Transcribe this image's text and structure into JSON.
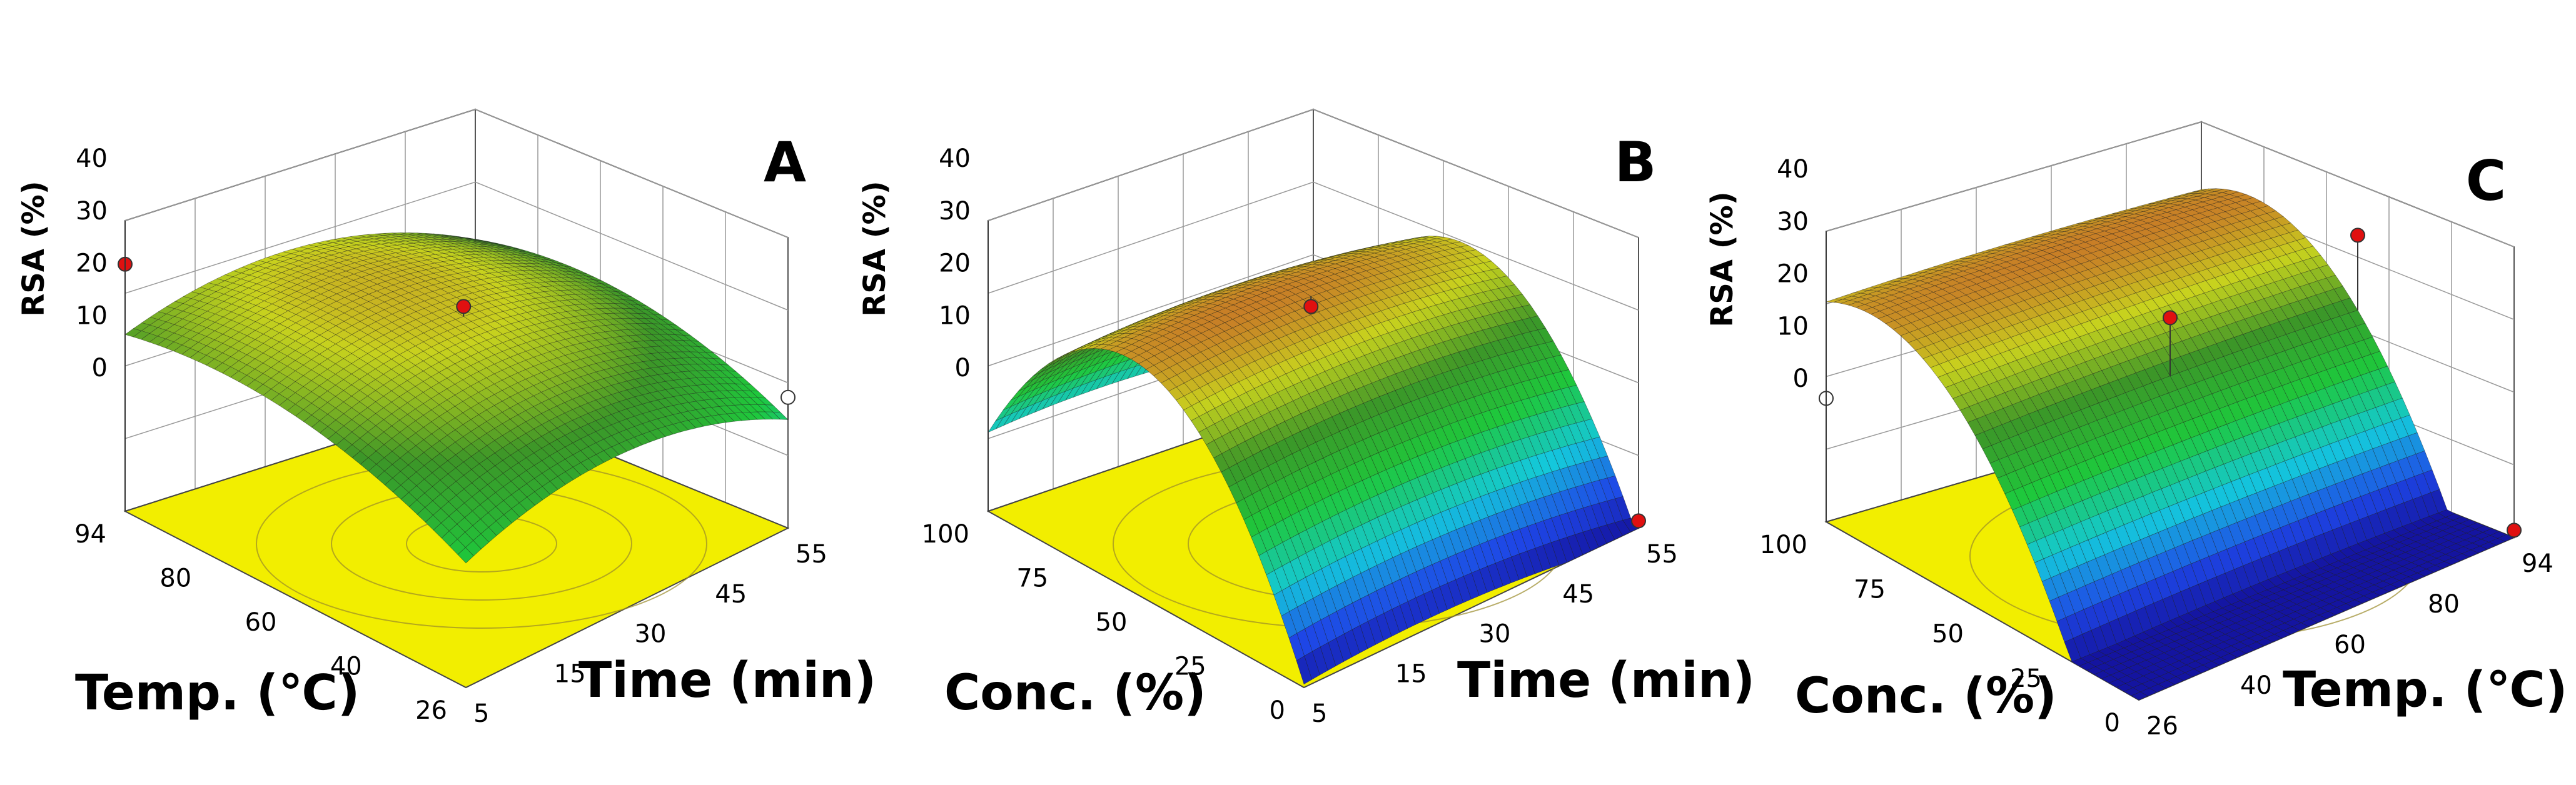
{
  "chart_data": [
    {
      "type": "surface3d",
      "panel_label": "A",
      "zlabel": "RSA (%)",
      "zticks": [
        "0",
        "10",
        "20",
        "30",
        "40"
      ],
      "zlim": [
        0,
        40
      ],
      "xlabel": "Temp. (℃)",
      "xticks": [
        "94",
        "80",
        "60",
        "40",
        "26"
      ],
      "xlim": [
        26,
        94
      ],
      "ylabel": "Time (min)",
      "yticks": [
        "5",
        "15",
        "30",
        "45",
        "55"
      ],
      "ylim": [
        5,
        55
      ],
      "colorscale": "high-red-low-blue",
      "floor_color": "#f2ee00",
      "design_points": [
        {
          "x": 94,
          "y": 5,
          "z": 34,
          "above_surface": true
        },
        {
          "x": 60,
          "y": 30,
          "z": 31,
          "above_surface": true
        },
        {
          "x": 26,
          "y": 55,
          "z": 18,
          "above_surface": false
        }
      ]
    },
    {
      "type": "surface3d",
      "panel_label": "B",
      "zlabel": "RSA (%)",
      "zticks": [
        "0",
        "10",
        "20",
        "30",
        "40"
      ],
      "zlim": [
        0,
        40
      ],
      "xlabel": "Conc. (%)",
      "xticks": [
        "100",
        "75",
        "50",
        "25",
        "0"
      ],
      "xlim": [
        0,
        100
      ],
      "ylabel": "Time (min)",
      "yticks": [
        "5",
        "15",
        "30",
        "45",
        "55"
      ],
      "ylim": [
        5,
        55
      ],
      "colorscale": "high-red-low-blue",
      "floor_color": "#f2ee00",
      "design_points": [
        {
          "x": 50,
          "y": 30,
          "z": 31,
          "above_surface": true
        },
        {
          "x": 0,
          "y": 55,
          "z": 1,
          "above_surface": true
        }
      ]
    },
    {
      "type": "surface3d",
      "panel_label": "C",
      "zlabel": "RSA (%)",
      "zticks": [
        "0",
        "10",
        "20",
        "30",
        "40"
      ],
      "zlim": [
        0,
        40
      ],
      "xlabel": "Conc. (%)",
      "xticks": [
        "100",
        "75",
        "50",
        "25",
        "0"
      ],
      "xlim": [
        0,
        100
      ],
      "ylabel": "Temp. (℃)",
      "yticks": [
        "26",
        "40",
        "60",
        "80",
        "94"
      ],
      "ylim": [
        26,
        94
      ],
      "colorscale": "high-red-low-blue",
      "floor_color": "#f2ee00",
      "design_points": [
        {
          "x": 100,
          "y": 26,
          "z": 17,
          "above_surface": false
        },
        {
          "x": 50,
          "y": 60,
          "z": 31,
          "above_surface": true
        },
        {
          "x": 50,
          "y": 94,
          "z": 33,
          "above_surface": true
        },
        {
          "x": 0,
          "y": 94,
          "z": 1,
          "above_surface": true
        }
      ]
    }
  ]
}
